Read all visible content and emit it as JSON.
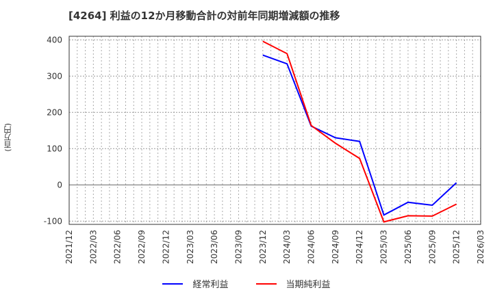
{
  "title": "[4264]  利益の12か月移動合計の対前年同期増減額の推移",
  "y_axis_label": "(百万円)",
  "legend": [
    {
      "label": "経常利益",
      "color": "#0000ff"
    },
    {
      "label": "当期純利益",
      "color": "#ff0000"
    }
  ],
  "chart_data": {
    "type": "line",
    "title": "[4264]  利益の12か月移動合計の対前年同期増減額の推移",
    "xlabel": "",
    "ylabel": "(百万円)",
    "ylim": [
      -110,
      410
    ],
    "y_ticks": [
      400,
      300,
      200,
      100,
      0,
      -100
    ],
    "x_ticks": [
      "2021/12",
      "2022/03",
      "2022/06",
      "2022/09",
      "2022/12",
      "2023/03",
      "2023/06",
      "2023/09",
      "2023/12",
      "2024/03",
      "2024/06",
      "2024/09",
      "2024/12",
      "2025/03",
      "2025/06",
      "2025/09",
      "2025/12",
      "2026/03"
    ],
    "grid": true,
    "legend_position": "bottom",
    "x": [
      "2023/12",
      "2024/03",
      "2024/06",
      "2024/09",
      "2024/12",
      "2025/03",
      "2025/06",
      "2025/09",
      "2025/12"
    ],
    "series": [
      {
        "name": "経常利益",
        "color": "#0000ff",
        "values": [
          358,
          334,
          162,
          130,
          120,
          -83,
          -48,
          -56,
          6
        ]
      },
      {
        "name": "当期純利益",
        "color": "#ff0000",
        "values": [
          396,
          362,
          164,
          115,
          73,
          -102,
          -85,
          -86,
          -53
        ]
      }
    ]
  }
}
